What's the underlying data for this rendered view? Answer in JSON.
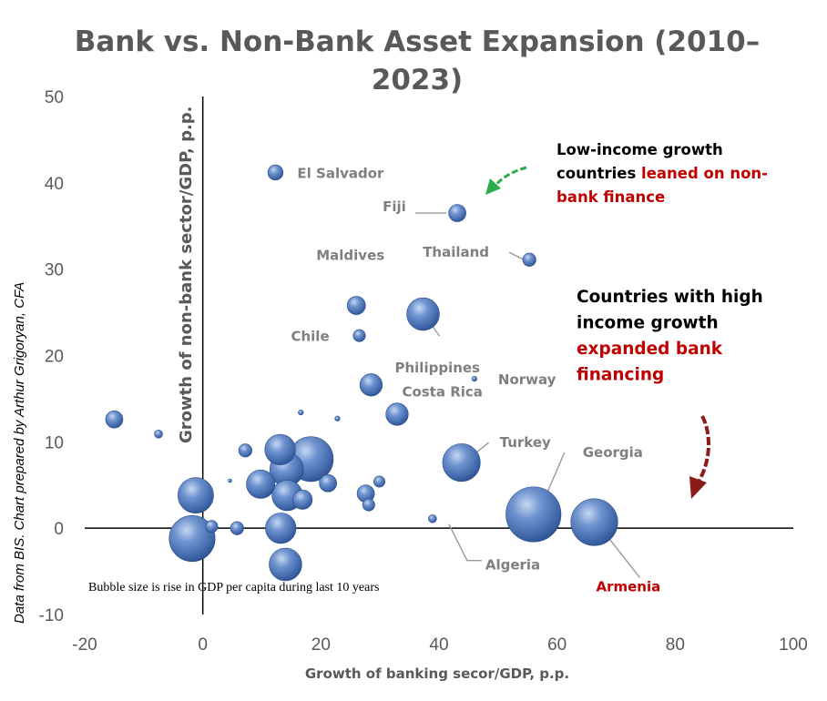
{
  "chart_data": {
    "type": "scatter",
    "title": "Bank vs. Non-Bank Asset Expansion (2010–2023)",
    "title_lines": [
      "Bank vs. Non-Bank Asset Expansion (2010–",
      "2023)"
    ],
    "xlabel": "Growth of banking secor/GDP, p.p.",
    "ylabel": "Growth of non-bank sector/GDP, p.p.",
    "credit": "Data from BIS. Chart prepared by Arthur Grigoryan, CFA",
    "xlim": [
      -20,
      100
    ],
    "ylim": [
      -10,
      50
    ],
    "x_ticks": [
      -20,
      0,
      20,
      40,
      60,
      80,
      100
    ],
    "y_ticks": [
      -10,
      0,
      10,
      20,
      30,
      40,
      50
    ],
    "bubble_note": "Bubble size is rise in GDP per capita during last 10 years",
    "bubble_color": "#4a73b5",
    "points": [
      {
        "label": "El Salvador",
        "x": 12.3,
        "y": 41.2,
        "size": 1.5
      },
      {
        "label": "Fiji",
        "x": 43.1,
        "y": 36.5,
        "size": 1.7
      },
      {
        "label": "Thailand",
        "x": 55.3,
        "y": 31.1,
        "size": 1.3
      },
      {
        "label": "Maldives",
        "x": 26.0,
        "y": 25.8,
        "size": 1.8
      },
      {
        "label": "Philippines",
        "x": 37.3,
        "y": 24.8,
        "size": 3.2
      },
      {
        "label": "Chile",
        "x": 26.5,
        "y": 22.3,
        "size": 1.2
      },
      {
        "label": "Costa Rica",
        "x": 28.5,
        "y": 16.6,
        "size": 2.2
      },
      {
        "label": "Norway",
        "x": 46.0,
        "y": 17.3,
        "size": 0.5
      },
      {
        "label": "Turkey",
        "x": 43.8,
        "y": 7.6,
        "size": 3.7
      },
      {
        "label": "Georgia",
        "x": 56.0,
        "y": 1.6,
        "size": 5.4
      },
      {
        "label": "Armenia",
        "x": 66.3,
        "y": 0.7,
        "size": 4.6
      },
      {
        "label": "Algeria",
        "x": 38.9,
        "y": 1.1,
        "size": 0.8
      },
      {
        "label": "",
        "x": -15.0,
        "y": 12.6,
        "size": 1.7
      },
      {
        "label": "",
        "x": -7.5,
        "y": 10.9,
        "size": 0.8
      },
      {
        "label": "",
        "x": -1.2,
        "y": 3.8,
        "size": 3.5
      },
      {
        "label": "",
        "x": -1.8,
        "y": -1.2,
        "size": 4.5
      },
      {
        "label": "",
        "x": 1.5,
        "y": 0.2,
        "size": 1.2
      },
      {
        "label": "",
        "x": 5.8,
        "y": 0.0,
        "size": 1.3
      },
      {
        "label": "",
        "x": 4.6,
        "y": 5.5,
        "size": 0.3
      },
      {
        "label": "",
        "x": 7.2,
        "y": 9.0,
        "size": 1.3
      },
      {
        "label": "",
        "x": 9.8,
        "y": 5.1,
        "size": 2.8
      },
      {
        "label": "",
        "x": 13.1,
        "y": 9.1,
        "size": 3.0
      },
      {
        "label": "",
        "x": 14.2,
        "y": 6.8,
        "size": 3.3
      },
      {
        "label": "",
        "x": 14.3,
        "y": 3.8,
        "size": 3.0
      },
      {
        "label": "",
        "x": 13.2,
        "y": 0.0,
        "size": 3.0
      },
      {
        "label": "",
        "x": 14.0,
        "y": -4.2,
        "size": 3.2
      },
      {
        "label": "",
        "x": 16.9,
        "y": 3.3,
        "size": 1.9
      },
      {
        "label": "",
        "x": 16.6,
        "y": 13.4,
        "size": 0.5
      },
      {
        "label": "",
        "x": 18.3,
        "y": 8.0,
        "size": 4.4
      },
      {
        "label": "",
        "x": 21.2,
        "y": 5.2,
        "size": 1.7
      },
      {
        "label": "",
        "x": 22.8,
        "y": 12.7,
        "size": 0.5
      },
      {
        "label": "",
        "x": 27.6,
        "y": 4.0,
        "size": 1.7
      },
      {
        "label": "",
        "x": 28.1,
        "y": 2.7,
        "size": 1.2
      },
      {
        "label": "",
        "x": 29.9,
        "y": 5.4,
        "size": 1.1
      },
      {
        "label": "",
        "x": 32.9,
        "y": 13.2,
        "size": 2.2
      }
    ],
    "callouts": [
      {
        "lines": [
          [
            {
              "text": "Low-income growth",
              "color": "#000000"
            }
          ],
          [
            {
              "text": "countries ",
              "color": "#000000"
            },
            {
              "text": "leaned on non-",
              "color": "#c00000"
            }
          ],
          [
            {
              "text": "bank finance",
              "color": "#c00000"
            }
          ]
        ],
        "arrow_color": "#2eab4a"
      },
      {
        "lines": [
          [
            {
              "text": "Countries with high",
              "color": "#000000"
            }
          ],
          [
            {
              "text": "income growth",
              "color": "#000000"
            }
          ],
          [
            {
              "text": "expanded bank",
              "color": "#c00000"
            }
          ],
          [
            {
              "text": "financing",
              "color": "#c00000"
            }
          ]
        ],
        "arrow_color": "#8b1a1a"
      }
    ],
    "label_color": "#7f7f7f",
    "highlight_label_color": "#c00000",
    "grid": false,
    "legend": "none"
  }
}
